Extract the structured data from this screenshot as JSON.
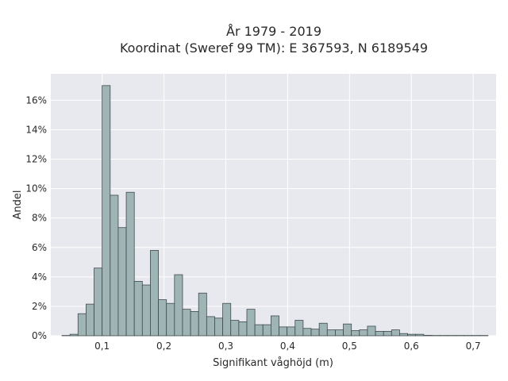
{
  "chart_data": {
    "type": "bar",
    "title_lines": [
      "År 1979 - 2019",
      "Koordinat (Sweref 99 TM): E 367593, N 6189549"
    ],
    "xlabel": "Signifikant våghöjd (m)",
    "ylabel": "Andel",
    "xlim": [
      0.017,
      0.737
    ],
    "ylim": [
      0,
      0.178
    ],
    "x_ticks": [
      0.1,
      0.2,
      0.3,
      0.4,
      0.5,
      0.6,
      0.7
    ],
    "x_tick_labels": [
      "0,1",
      "0,2",
      "0,3",
      "0,4",
      "0,5",
      "0,6",
      "0,7"
    ],
    "y_ticks": [
      0,
      0.02,
      0.04,
      0.06,
      0.08,
      0.1,
      0.12,
      0.14,
      0.16
    ],
    "y_tick_labels": [
      "0%",
      "2%",
      "4%",
      "6%",
      "8%",
      "10%",
      "12%",
      "14%",
      "16%"
    ],
    "bin_start": 0.035,
    "bin_width": 0.013,
    "values": [
      0.0002,
      0.001,
      0.015,
      0.0215,
      0.046,
      0.17,
      0.0955,
      0.0735,
      0.0975,
      0.037,
      0.0345,
      0.058,
      0.0245,
      0.022,
      0.0415,
      0.018,
      0.0165,
      0.029,
      0.013,
      0.012,
      0.022,
      0.0105,
      0.0095,
      0.018,
      0.0075,
      0.0075,
      0.0135,
      0.006,
      0.006,
      0.0105,
      0.005,
      0.0045,
      0.0085,
      0.004,
      0.004,
      0.008,
      0.0035,
      0.004,
      0.0065,
      0.003,
      0.003,
      0.004,
      0.0015,
      0.001,
      0.001,
      0.0003,
      0.0002,
      0.0002,
      0.0002,
      0.0002,
      0.0002,
      0.0002,
      0.0002
    ],
    "grid": true,
    "colors": {
      "plot_background": "#e8e8ef",
      "grid": "#ffffff",
      "bar_fill": "#9fb5b5",
      "bar_edge": "#3f4a4a"
    }
  }
}
